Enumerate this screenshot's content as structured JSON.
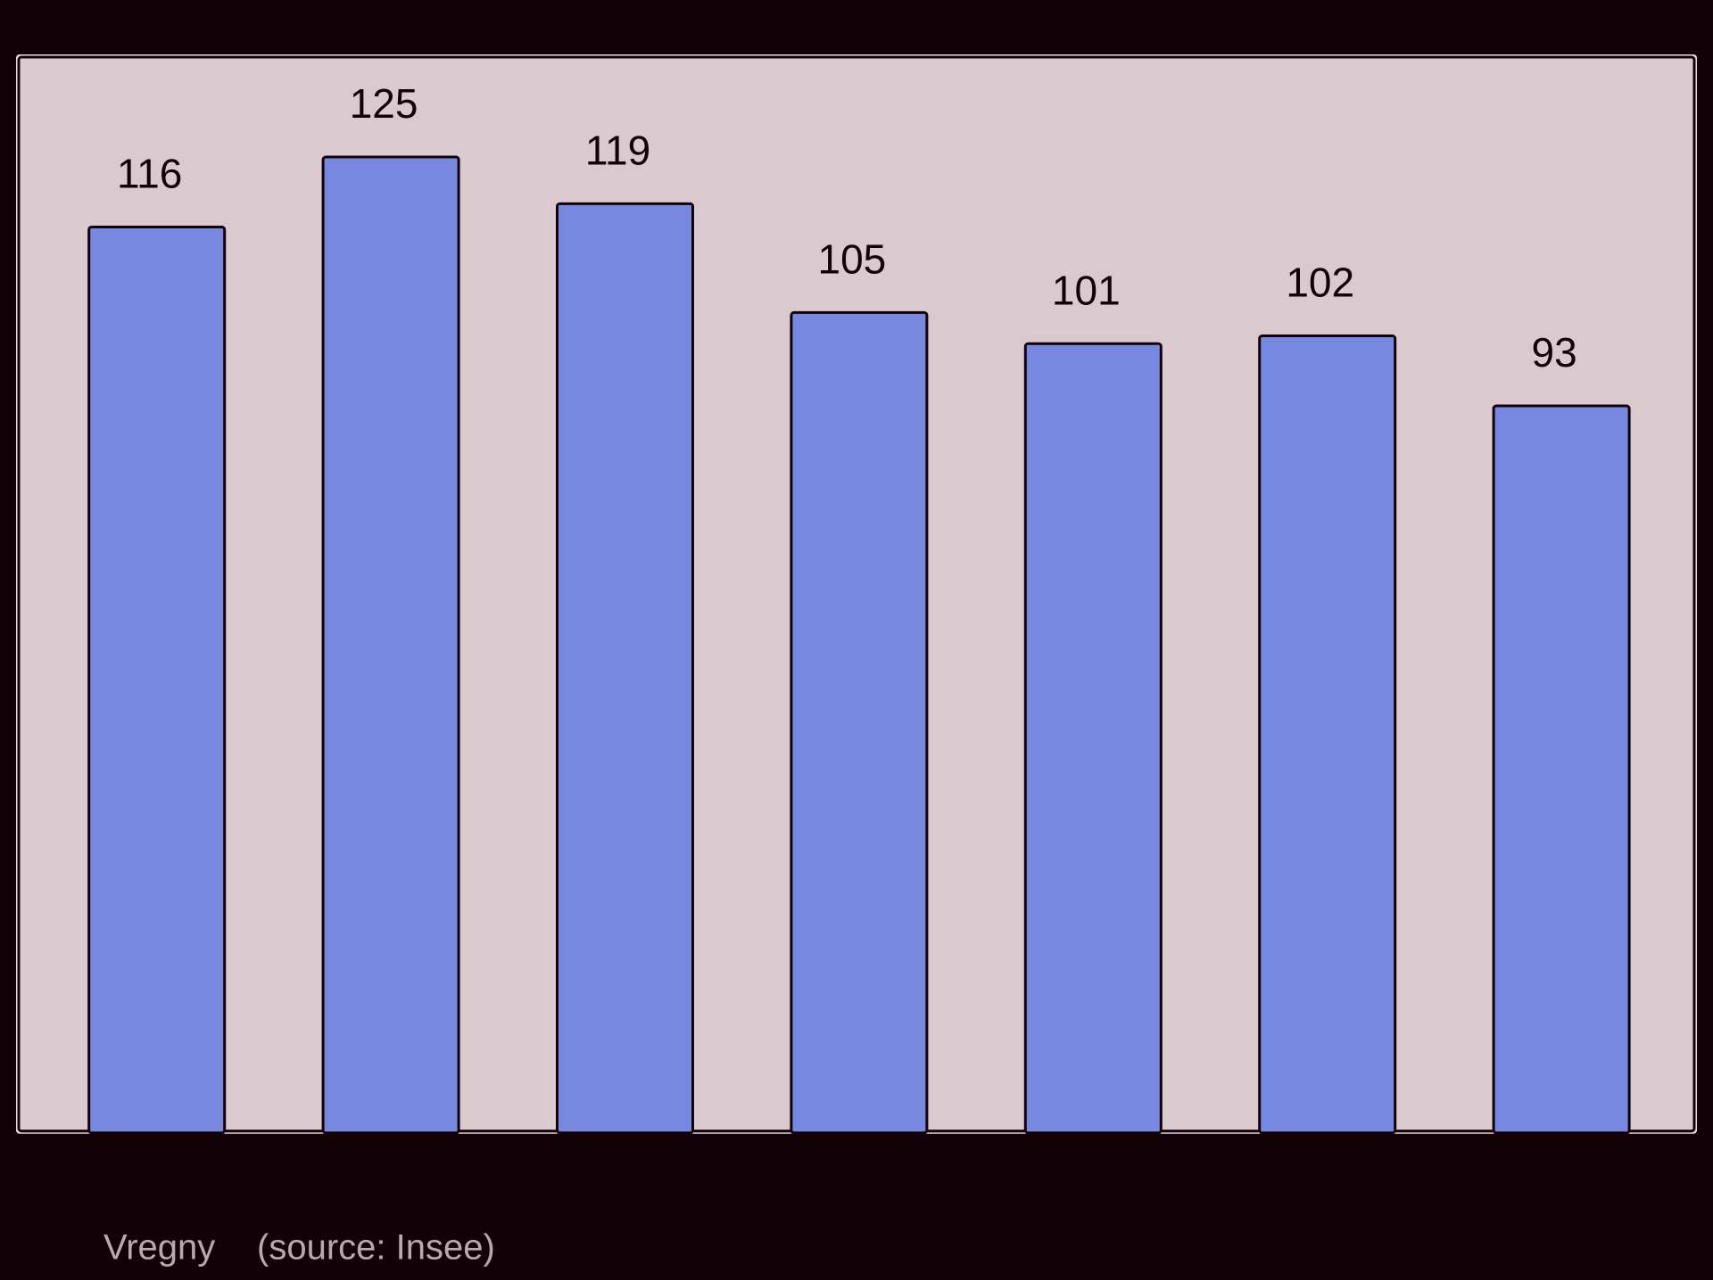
{
  "chart_data": {
    "type": "bar",
    "categories": [
      null,
      null,
      null,
      null,
      null,
      null,
      null
    ],
    "values": [
      116,
      125,
      119,
      105,
      101,
      102,
      93
    ],
    "color": "#7788e0",
    "caption": {
      "place": "Vregny",
      "source": "(source: Insee)"
    }
  }
}
